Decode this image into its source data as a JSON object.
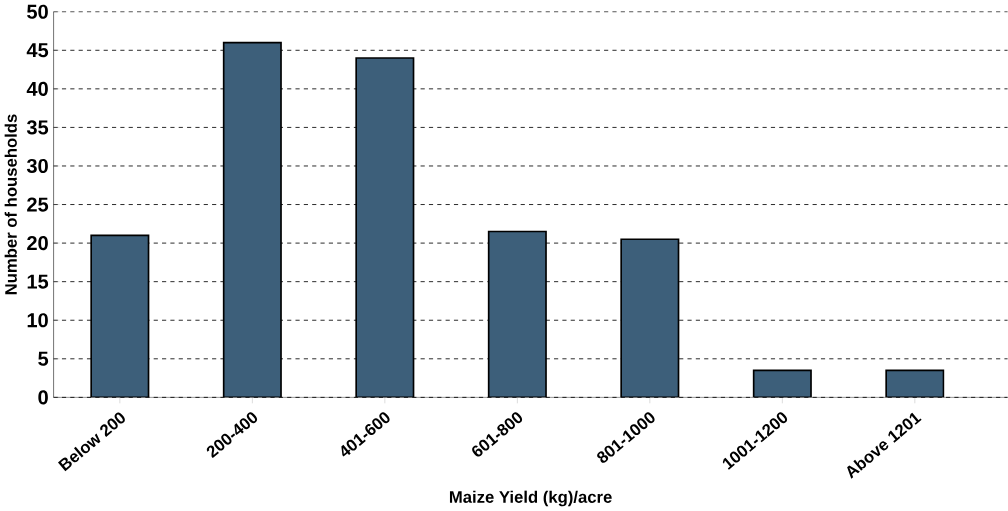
{
  "chart_data": {
    "type": "bar",
    "xlabel": "Maize Yield (kg)/acre",
    "ylabel": "Number of households",
    "categories": [
      "Below 200",
      "200-400",
      "401-600",
      "601-800",
      "801-1000",
      "1001-1200",
      "Above 1201"
    ],
    "values": [
      21,
      46,
      44,
      21.5,
      20.5,
      3.5,
      3.5
    ],
    "color": "#3d5f7a",
    "ylim": [
      0,
      50
    ],
    "yticks": [
      0,
      5,
      10,
      15,
      20,
      25,
      30,
      35,
      40,
      45,
      50
    ],
    "grid": "y"
  }
}
